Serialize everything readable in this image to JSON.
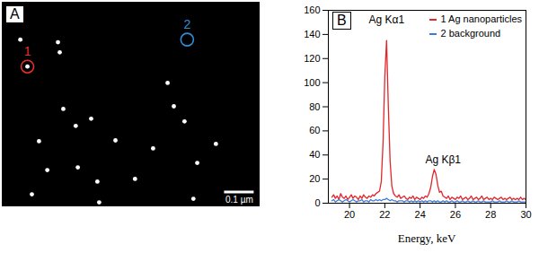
{
  "chart_data": [
    {
      "type": "scatter",
      "title": "A",
      "tick_labels": false,
      "color": "#ffffff",
      "xlim": [
        0,
        0.87
      ],
      "ylim": [
        0,
        0.69
      ],
      "x": [
        0.061,
        0.085,
        0.188,
        0.194,
        0.206,
        0.124,
        0.255,
        0.321,
        0.382,
        0.248,
        0.448,
        0.558,
        0.579,
        0.615,
        0.658,
        0.645,
        0.152,
        0.3,
        0.721,
        0.327,
        0.509,
        0.1
      ],
      "values": [
        0.564,
        0.473,
        0.555,
        0.521,
        0.33,
        0.221,
        0.133,
        0.085,
        0.224,
        0.273,
        0.094,
        0.418,
        0.339,
        0.288,
        0.148,
        0.027,
        0.124,
        0.297,
        0.212,
        0.015,
        0.197,
        0.042
      ],
      "annotations": [
        {
          "text": "1",
          "x": 0.085,
          "y": 0.473,
          "color": "#e8312a"
        },
        {
          "text": "2",
          "x": 0.624,
          "y": 0.564,
          "color": "#2f8fd8"
        }
      ],
      "scale_bar": {
        "value": 0.1,
        "label": "0.1 µm"
      }
    },
    {
      "type": "line",
      "title": "B",
      "x_label": "Energy, keV",
      "legend": "top-right",
      "grid": false,
      "xlim": [
        18.8,
        30
      ],
      "xticks": [
        20,
        22,
        24,
        26,
        28,
        30
      ],
      "ylim": [
        0,
        160
      ],
      "yticks": [
        0,
        20,
        40,
        60,
        80,
        100,
        120,
        140,
        160
      ],
      "x": [
        19,
        19.1,
        19.2,
        19.3,
        19.4,
        19.5,
        19.6,
        19.7,
        19.8,
        19.9,
        20,
        20.1,
        20.2,
        20.3,
        20.4,
        20.5,
        20.6,
        20.7,
        20.8,
        20.9,
        21,
        21.1,
        21.2,
        21.3,
        21.4,
        21.5,
        21.6,
        21.7,
        21.8,
        21.9,
        22,
        22.1,
        22.2,
        22.3,
        22.4,
        22.5,
        22.6,
        22.7,
        22.8,
        22.9,
        23,
        23.1,
        23.2,
        23.3,
        23.4,
        23.5,
        23.6,
        23.7,
        23.8,
        23.9,
        24,
        24.1,
        24.2,
        24.3,
        24.4,
        24.5,
        24.6,
        24.7,
        24.8,
        24.9,
        25,
        25.1,
        25.2,
        25.3,
        25.4,
        25.5,
        25.6,
        25.7,
        25.8,
        25.9,
        26,
        26.1,
        26.2,
        26.3,
        26.4,
        26.5,
        26.6,
        26.7,
        26.8,
        26.9,
        27,
        27.1,
        27.2,
        27.3,
        27.4,
        27.5,
        27.6,
        27.7,
        27.8,
        27.9,
        28,
        28.1,
        28.2,
        28.3,
        28.4,
        28.5,
        28.6,
        28.7,
        28.8,
        28.9,
        29,
        29.1,
        29.2,
        29.3,
        29.4,
        29.5,
        29.6,
        29.7,
        29.8,
        29.9,
        30
      ],
      "series": [
        {
          "name": "1 Ag nanoparticles",
          "color": "#e3262a",
          "values": [
            5,
            7,
            4,
            6,
            3,
            8,
            5,
            4,
            6,
            3,
            5,
            7,
            4,
            6,
            5,
            3,
            6,
            4,
            7,
            5,
            4,
            6,
            5,
            7,
            6,
            8,
            9,
            10,
            18,
            50,
            105,
            135,
            80,
            35,
            14,
            8,
            6,
            5,
            7,
            4,
            5,
            6,
            4,
            3,
            5,
            4,
            6,
            3,
            5,
            4,
            3,
            5,
            4,
            6,
            5,
            8,
            13,
            22,
            28,
            24,
            15,
            9,
            10,
            6,
            5,
            4,
            6,
            3,
            5,
            4,
            3,
            5,
            4,
            6,
            3,
            4,
            5,
            3,
            4,
            6,
            3,
            4,
            5,
            3,
            4,
            6,
            3,
            4,
            5,
            3,
            4,
            3,
            5,
            4,
            3,
            4,
            5,
            3,
            4,
            3,
            4,
            5,
            3,
            4,
            3,
            4,
            3,
            5,
            3,
            4,
            3
          ]
        },
        {
          "name": "2 background",
          "color": "#3b7dd8",
          "values": [
            2,
            3,
            1,
            2,
            3,
            2,
            1,
            2,
            3,
            2,
            1,
            2,
            3,
            2,
            1,
            2,
            2,
            3,
            1,
            2,
            2,
            1,
            3,
            2,
            2,
            3,
            2,
            3,
            2,
            3,
            3,
            4,
            3,
            2,
            3,
            2,
            2,
            1,
            2,
            2,
            2,
            1,
            2,
            2,
            1,
            2,
            1,
            2,
            1,
            2,
            1,
            2,
            1,
            2,
            1,
            2,
            2,
            1,
            2,
            1,
            2,
            1,
            1,
            2,
            1,
            2,
            1,
            1,
            2,
            1,
            1,
            2,
            1,
            1,
            2,
            1,
            1,
            2,
            1,
            1,
            2,
            1,
            1,
            2,
            1,
            1,
            2,
            1,
            1,
            1,
            1,
            2,
            1,
            1,
            1,
            2,
            1,
            1,
            1,
            2,
            1,
            1,
            2,
            1,
            1,
            1,
            2,
            1,
            1,
            1,
            1
          ]
        }
      ],
      "annotations": [
        {
          "text": "Ag Kα1",
          "x": 22.1,
          "y": 152
        },
        {
          "text": "Ag Kβ1",
          "x": 25.3,
          "y": 36
        }
      ]
    }
  ]
}
